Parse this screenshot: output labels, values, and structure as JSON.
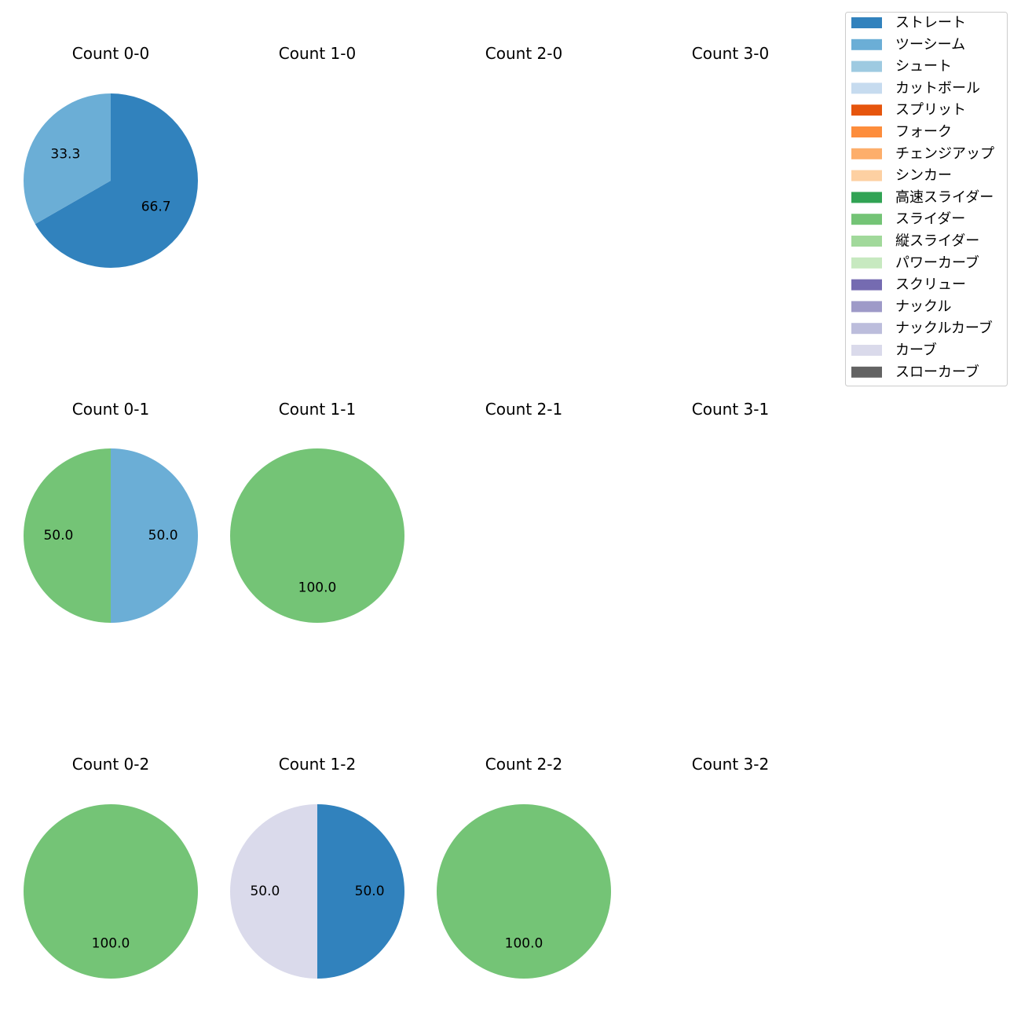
{
  "chart_data": {
    "type": "pie",
    "title": "",
    "legend": {
      "placement": "top-right",
      "entries": [
        {
          "label": "ストレート",
          "color": "#3182bd"
        },
        {
          "label": "ツーシーム",
          "color": "#6baed6"
        },
        {
          "label": "シュート",
          "color": "#9ecae1"
        },
        {
          "label": "カットボール",
          "color": "#c6dbef"
        },
        {
          "label": "スプリット",
          "color": "#e6550d"
        },
        {
          "label": "フォーク",
          "color": "#fd8d3c"
        },
        {
          "label": "チェンジアップ",
          "color": "#fdae6b"
        },
        {
          "label": "シンカー",
          "color": "#fdd0a2"
        },
        {
          "label": "高速スライダー",
          "color": "#31a354"
        },
        {
          "label": "スライダー",
          "color": "#74c476"
        },
        {
          "label": "縦スライダー",
          "color": "#a1d99b"
        },
        {
          "label": "パワーカーブ",
          "color": "#c7e9c0"
        },
        {
          "label": "スクリュー",
          "color": "#756bb1"
        },
        {
          "label": "ナックル",
          "color": "#9e9ac8"
        },
        {
          "label": "ナックルカーブ",
          "color": "#bcbddc"
        },
        {
          "label": "カーブ",
          "color": "#dadaeb"
        },
        {
          "label": "スローカーブ",
          "color": "#636363"
        }
      ]
    },
    "panels": [
      {
        "title": "Count 0-0",
        "slices": [
          {
            "pitch": "ストレート",
            "value": 66.7,
            "label": "66.7"
          },
          {
            "pitch": "ツーシーム",
            "value": 33.3,
            "label": "33.3"
          }
        ]
      },
      {
        "title": "Count 1-0",
        "slices": []
      },
      {
        "title": "Count 2-0",
        "slices": []
      },
      {
        "title": "Count 3-0",
        "slices": []
      },
      {
        "title": "Count 0-1",
        "slices": [
          {
            "pitch": "ツーシーム",
            "value": 50.0,
            "label": "50.0"
          },
          {
            "pitch": "スライダー",
            "value": 50.0,
            "label": "50.0"
          }
        ]
      },
      {
        "title": "Count 1-1",
        "slices": [
          {
            "pitch": "スライダー",
            "value": 100.0,
            "label": "100.0"
          }
        ]
      },
      {
        "title": "Count 2-1",
        "slices": []
      },
      {
        "title": "Count 3-1",
        "slices": []
      },
      {
        "title": "Count 0-2",
        "slices": [
          {
            "pitch": "スライダー",
            "value": 100.0,
            "label": "100.0"
          }
        ]
      },
      {
        "title": "Count 1-2",
        "slices": [
          {
            "pitch": "ストレート",
            "value": 50.0,
            "label": "50.0"
          },
          {
            "pitch": "カーブ",
            "value": 50.0,
            "label": "50.0"
          }
        ]
      },
      {
        "title": "Count 2-2",
        "slices": [
          {
            "pitch": "スライダー",
            "value": 100.0,
            "label": "100.0"
          }
        ]
      },
      {
        "title": "Count 3-2",
        "slices": []
      }
    ]
  }
}
